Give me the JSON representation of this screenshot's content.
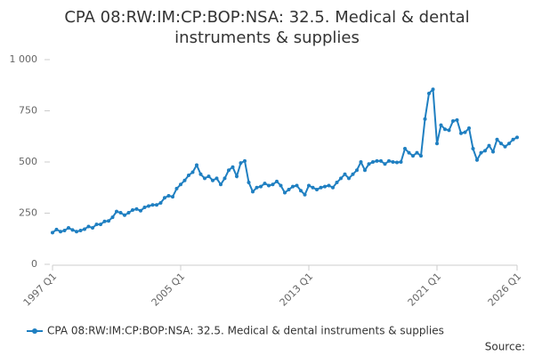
{
  "chart_data": {
    "type": "line",
    "title": "CPA 08:RW:IM:CP:BOP:NSA: 32.5. Medical & dental instruments & supplies",
    "source": "Source:",
    "categories": [
      "1997 Q1",
      null,
      null,
      null,
      null,
      null,
      null,
      null,
      null,
      null,
      null,
      null,
      null,
      null,
      null,
      null,
      null,
      null,
      null,
      null,
      null,
      null,
      null,
      null,
      null,
      null,
      null,
      null,
      null,
      null,
      null,
      null,
      "2005 Q1",
      null,
      null,
      null,
      null,
      null,
      null,
      null,
      null,
      null,
      null,
      null,
      null,
      null,
      null,
      null,
      null,
      null,
      null,
      null,
      null,
      null,
      null,
      null,
      null,
      null,
      null,
      null,
      null,
      null,
      null,
      null,
      "2013 Q1",
      null,
      null,
      null,
      null,
      null,
      null,
      null,
      null,
      null,
      null,
      null,
      null,
      null,
      null,
      null,
      null,
      null,
      null,
      null,
      null,
      null,
      null,
      null,
      null,
      null,
      null,
      null,
      null,
      null,
      null,
      null,
      "2021 Q1",
      null,
      null,
      null,
      null,
      null,
      null,
      null,
      null,
      null,
      null,
      null,
      null,
      null,
      null,
      null,
      null,
      null,
      null,
      null,
      "2026 Q1"
    ],
    "series": [
      {
        "name": "CPA 08:RW:IM:CP:BOP:NSA: 32.5. Medical & dental instruments & supplies",
        "color": "#1f7fc1",
        "values": [
          155,
          170,
          160,
          165,
          178,
          168,
          160,
          165,
          172,
          185,
          178,
          195,
          195,
          210,
          212,
          230,
          258,
          252,
          240,
          252,
          265,
          270,
          262,
          278,
          285,
          290,
          290,
          300,
          325,
          335,
          330,
          370,
          390,
          410,
          435,
          450,
          485,
          440,
          420,
          430,
          410,
          420,
          390,
          420,
          460,
          475,
          430,
          495,
          505,
          400,
          355,
          375,
          380,
          395,
          385,
          390,
          405,
          385,
          350,
          365,
          380,
          385,
          360,
          340,
          385,
          375,
          365,
          375,
          380,
          385,
          375,
          400,
          420,
          440,
          420,
          440,
          460,
          500,
          460,
          490,
          500,
          505,
          505,
          490,
          505,
          500,
          498,
          500,
          565,
          545,
          530,
          545,
          530,
          710,
          835,
          855,
          590,
          680,
          660,
          655,
          700,
          705,
          640,
          645,
          665,
          565,
          510,
          545,
          555,
          580,
          550,
          610,
          590,
          575,
          590,
          610,
          620
        ]
      }
    ],
    "ylim": [
      0,
      1000
    ],
    "yticks": [
      0,
      250,
      500,
      750,
      {
        "value": 1000,
        "label": "1 000"
      }
    ],
    "grid": false
  }
}
